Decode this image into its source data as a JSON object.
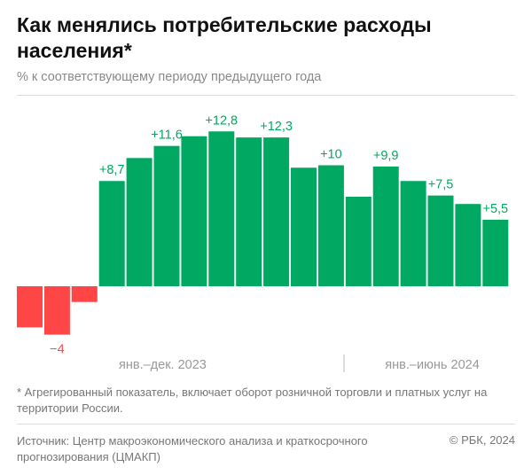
{
  "title": "Как менялись потребительские расходы населения*",
  "subtitle": "% к соответствующему периоду предыдущего года",
  "footnote": "* Агрегированный показатель, включает оборот розничной торговли и платных услуг на территории России.",
  "source": "Источник: Центр макроэкономического анализа и краткосрочного прогнозирования (ЦМАКП)",
  "copyright": "© РБК, 2024",
  "colors": {
    "positive": "#00a862",
    "negative": "#ff4646",
    "axis_text": "#999999"
  },
  "chart_data": {
    "type": "bar",
    "values": [
      -3.4,
      -4,
      -1.3,
      8.7,
      10.6,
      11.6,
      12.4,
      12.8,
      12.3,
      12.3,
      9.8,
      10,
      7.4,
      9.9,
      8.7,
      7.5,
      6.8,
      5.5
    ],
    "data_labels": [
      "",
      "−4",
      "",
      "+8,7",
      "",
      "+11,6",
      "",
      "+12,8",
      "",
      "+12,3",
      "",
      "+10",
      "",
      "+9,9",
      "",
      "+7,5",
      "",
      "+5,5"
    ],
    "period_labels": [
      {
        "label": "янв.–дек. 2023",
        "from": 0,
        "to": 11
      },
      {
        "label": "янв.–июнь 2024",
        "from": 12,
        "to": 17
      }
    ],
    "ylim": [
      -4,
      12.8
    ],
    "grid": false,
    "legend": "none"
  }
}
